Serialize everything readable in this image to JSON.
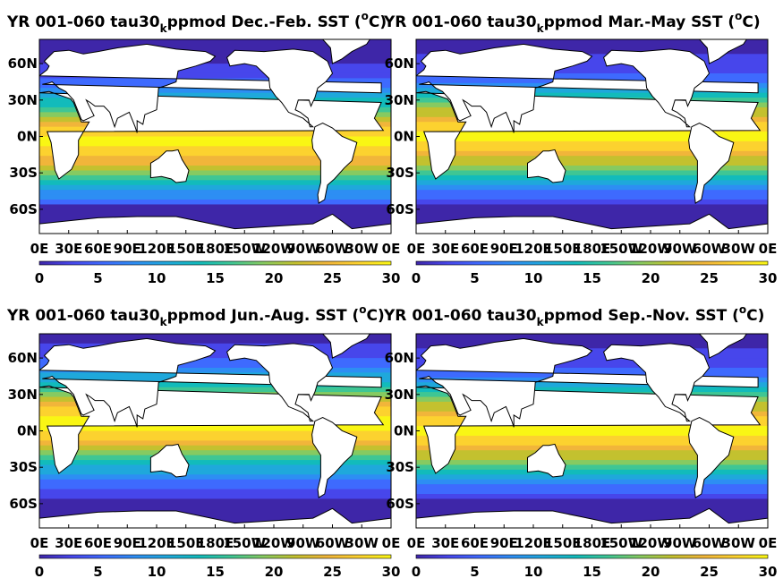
{
  "figure": {
    "panels": [
      {
        "title": "YR 001-060 tau30",
        "title_sub": "k",
        "title_rest": "ppmod Dec.-Feb. SST (",
        "title_sup": "o",
        "title_end": "C)",
        "season": "DJF"
      },
      {
        "title": "YR 001-060 tau30",
        "title_sub": "k",
        "title_rest": "ppmod Mar.-May SST (",
        "title_sup": "o",
        "title_end": "C)",
        "season": "MAM"
      },
      {
        "title": "YR 001-060 tau30",
        "title_sub": "k",
        "title_rest": "ppmod Jun.-Aug. SST (",
        "title_sup": "o",
        "title_end": "C)",
        "season": "JJA"
      },
      {
        "title": "YR 001-060 tau30",
        "title_sub": "k",
        "title_rest": "ppmod Sep.-Nov. SST (",
        "title_sup": "o",
        "title_end": "C)",
        "season": "SON"
      }
    ],
    "lat_ticks": [
      "60N",
      "30N",
      "0N",
      "30S",
      "60S"
    ],
    "lon_ticks": [
      "0E",
      "30E",
      "60E",
      "90E",
      "120E",
      "150E",
      "180E",
      "150W",
      "120W",
      "90W",
      "60W",
      "30W",
      "0E"
    ],
    "colorbar_ticks": [
      "0",
      "5",
      "10",
      "15",
      "20",
      "25",
      "30"
    ],
    "colorbar_range": [
      0,
      30
    ],
    "colormap": [
      "#3e26a8",
      "#4746eb",
      "#3e6afe",
      "#2d8ef3",
      "#1fa8db",
      "#12bbbb",
      "#3fc694",
      "#86ca61",
      "#c3c12f",
      "#f1b53a",
      "#fcd22f",
      "#f9f614"
    ],
    "land_color": "#ffffff",
    "coast_color": "#000000"
  }
}
